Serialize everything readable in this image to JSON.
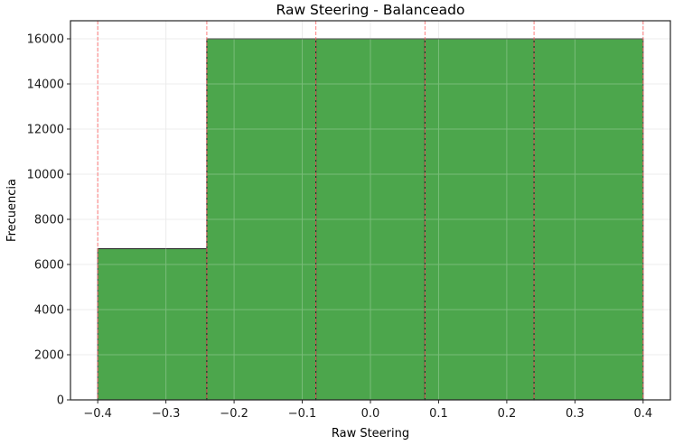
{
  "chart_data": {
    "type": "bar",
    "title": "Raw Steering - Balanceado",
    "xlabel": "Raw Steering",
    "ylabel": "Frecuencia",
    "bin_edges": [
      -0.4,
      -0.24,
      -0.08,
      0.08,
      0.24,
      0.4
    ],
    "categories": [
      "[-0.40, -0.24)",
      "[-0.24, -0.08)",
      "[-0.08, 0.08)",
      "[0.08, 0.24)",
      "[0.24, 0.40]"
    ],
    "values": [
      6700,
      16000,
      16000,
      16000,
      16000
    ],
    "xlim": [
      -0.44,
      0.44
    ],
    "ylim": [
      0,
      16800
    ],
    "xticks": [
      -0.4,
      -0.3,
      -0.2,
      -0.1,
      0.0,
      0.1,
      0.2,
      0.3,
      0.4
    ],
    "xtick_labels": [
      "−0.4",
      "−0.3",
      "−0.2",
      "−0.1",
      "0.0",
      "0.1",
      "0.2",
      "0.3",
      "0.4"
    ],
    "yticks": [
      0,
      2000,
      4000,
      6000,
      8000,
      10000,
      12000,
      14000,
      16000
    ],
    "ytick_labels": [
      "0",
      "2000",
      "4000",
      "6000",
      "8000",
      "10000",
      "12000",
      "14000",
      "16000"
    ],
    "grid": true,
    "legend": null,
    "annotations": "vertical red dashed lines at each bin edge",
    "colors": {
      "bar_fill": "#4ca64c",
      "bar_edge": "#2b2b2b",
      "bin_edge_line": "#ff6666",
      "grid": "#e6e6e6"
    }
  }
}
